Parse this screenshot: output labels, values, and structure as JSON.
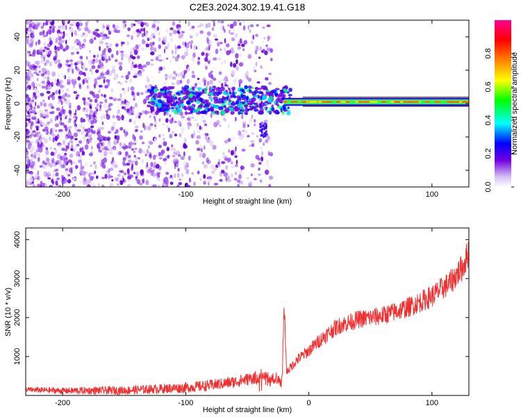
{
  "title": "C2E3.2024.302.19.41.G18",
  "colors": {
    "snr_line": "#f03030",
    "frame": "#000000",
    "scatter": "#7b1ff0",
    "band": "#ff5030"
  },
  "chart_data": [
    {
      "type": "heatmap",
      "xlabel": "Height of straight line (km)",
      "ylabel": "Frequency (Hz)",
      "xlim": [
        -230,
        130
      ],
      "ylim": [
        -50,
        50
      ],
      "x_ticks": [
        -200,
        -100,
        0,
        100
      ],
      "y_ticks": [
        -40,
        -20,
        0,
        20,
        40
      ],
      "x_tick_labels": [
        "-200",
        "-100",
        "0",
        "100"
      ],
      "y_tick_labels": [
        "-40",
        "-20",
        "0",
        "20",
        "40"
      ],
      "colorbar": {
        "label": "Normalized spectral amplitude",
        "range": [
          0,
          1
        ],
        "ticks": [
          0.0,
          0.2,
          0.4,
          0.6,
          0.8
        ],
        "tick_labels": [
          "0.0",
          "0.2",
          "0.4",
          "0.6",
          "0.8"
        ],
        "colormap": [
          "#ffffff",
          "#c8a8f0",
          "#7000e0",
          "#0000ff",
          "#00ffff",
          "#00ff00",
          "#ffff00",
          "#ff8000",
          "#ff0000",
          "#ff0090"
        ]
      },
      "signal_band": {
        "description_x_range": [
          -130,
          130
        ],
        "center_frequency_hz": 1,
        "half_width_hz": 2
      },
      "noise_region_x_range": [
        -230,
        -30
      ]
    },
    {
      "type": "line",
      "xlabel": "Height of straight line (km)",
      "ylabel": "SNR (10 * v/v)",
      "xlim": [
        -230,
        130
      ],
      "ylim": [
        0,
        4300
      ],
      "x_ticks": [
        -200,
        -100,
        0,
        100
      ],
      "y_ticks": [
        1000,
        2000,
        3000,
        4000
      ],
      "x_tick_labels": [
        "-200",
        "-100",
        "0",
        "100"
      ],
      "y_tick_labels": [
        "1000",
        "2000",
        "3000",
        "4000"
      ],
      "trend": {
        "x": [
          -230,
          -200,
          -150,
          -100,
          -80,
          -60,
          -45,
          -35,
          -22,
          -20,
          -18,
          -10,
          0,
          10,
          20,
          25,
          40,
          60,
          80,
          100,
          115,
          125,
          130
        ],
        "y": [
          150,
          120,
          130,
          200,
          260,
          350,
          450,
          500,
          300,
          2250,
          600,
          900,
          1150,
          1450,
          1700,
          1800,
          1950,
          2050,
          2250,
          2550,
          2900,
          3300,
          3700
        ]
      }
    }
  ]
}
